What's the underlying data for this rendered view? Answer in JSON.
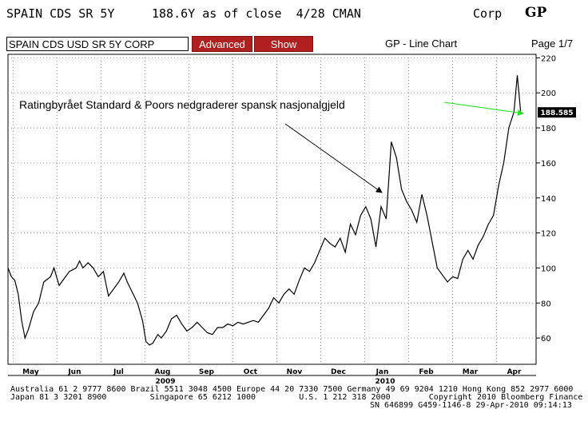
{
  "header": {
    "ticker": "SPAIN CDS SR 5Y",
    "price_info": "188.6Y as of close  4/28 CMAN",
    "sector": "Corp",
    "function": "GP"
  },
  "toolbar": {
    "security_value": "SPAIN CDS USD SR 5Y CORP",
    "advanced_label": "Advanced",
    "show_label": "Show",
    "chart_title": "GP - Line Chart",
    "page": "Page 1/7"
  },
  "chart_data": {
    "type": "line",
    "y_ticks": [
      "60",
      "80",
      "100",
      "120",
      "140",
      "160",
      "180",
      "200",
      "220"
    ],
    "ylim": [
      45,
      222
    ],
    "x_months": [
      "May",
      "Jun",
      "Jul",
      "Aug",
      "Sep",
      "Oct",
      "Nov",
      "Dec",
      "Jan",
      "Feb",
      "Mar",
      "Apr"
    ],
    "x_years": [
      "2009",
      "2010"
    ],
    "last_value_label": "188.585",
    "annotation": "Ratingbyrået Standard & Poors nedgraderer spansk nasjonalgjeld",
    "series": [
      {
        "values": [
          [
            0,
            100
          ],
          [
            0.2,
            95
          ],
          [
            0.4,
            93
          ],
          [
            0.6,
            85
          ],
          [
            0.8,
            70
          ],
          [
            1,
            60
          ],
          [
            1.2,
            65
          ],
          [
            1.5,
            75
          ],
          [
            1.8,
            80
          ],
          [
            2.1,
            92
          ],
          [
            2.5,
            95
          ],
          [
            2.7,
            100
          ],
          [
            3,
            90
          ],
          [
            3.3,
            94
          ],
          [
            3.6,
            98
          ],
          [
            4,
            100
          ],
          [
            4.2,
            104
          ],
          [
            4.4,
            100
          ],
          [
            4.7,
            103
          ],
          [
            5,
            100
          ],
          [
            5.3,
            95
          ],
          [
            5.6,
            98
          ],
          [
            5.9,
            84
          ],
          [
            6.2,
            88
          ],
          [
            6.5,
            92
          ],
          [
            6.8,
            97
          ],
          [
            7,
            92
          ],
          [
            7.3,
            86
          ],
          [
            7.6,
            80
          ],
          [
            7.9,
            70
          ],
          [
            8.1,
            58
          ],
          [
            8.3,
            56
          ],
          [
            8.5,
            57
          ],
          [
            8.8,
            62
          ],
          [
            9,
            60
          ],
          [
            9.3,
            64
          ],
          [
            9.6,
            71
          ],
          [
            9.9,
            73
          ],
          [
            10.2,
            68
          ],
          [
            10.5,
            64
          ],
          [
            10.8,
            66
          ],
          [
            11.1,
            69
          ],
          [
            11.4,
            66
          ],
          [
            11.7,
            63
          ],
          [
            12,
            62
          ],
          [
            12.3,
            66
          ],
          [
            12.6,
            66
          ],
          [
            12.9,
            68
          ],
          [
            13.2,
            67
          ],
          [
            13.5,
            69
          ],
          [
            13.8,
            68
          ],
          [
            14.1,
            69
          ],
          [
            14.4,
            70
          ],
          [
            14.7,
            69
          ],
          [
            15,
            73
          ],
          [
            15.3,
            77
          ],
          [
            15.6,
            83
          ],
          [
            15.9,
            80
          ],
          [
            16.2,
            85
          ],
          [
            16.5,
            88
          ],
          [
            16.8,
            85
          ],
          [
            17.1,
            93
          ],
          [
            17.4,
            100
          ],
          [
            17.7,
            98
          ],
          [
            18,
            103
          ],
          [
            18.3,
            110
          ],
          [
            18.6,
            117
          ],
          [
            18.9,
            114
          ],
          [
            19.2,
            112
          ],
          [
            19.5,
            117
          ],
          [
            19.8,
            109
          ],
          [
            20.1,
            125
          ],
          [
            20.4,
            119
          ],
          [
            20.7,
            130
          ],
          [
            21,
            135
          ],
          [
            21.3,
            128
          ],
          [
            21.6,
            112
          ],
          [
            21.9,
            135
          ],
          [
            22.2,
            128
          ],
          [
            22.5,
            172
          ],
          [
            22.8,
            163
          ],
          [
            23.1,
            145
          ],
          [
            23.4,
            138
          ],
          [
            23.7,
            133
          ],
          [
            24,
            126
          ],
          [
            24.3,
            142
          ],
          [
            24.6,
            130
          ],
          [
            24.9,
            115
          ],
          [
            25.2,
            100
          ],
          [
            25.5,
            96
          ],
          [
            25.8,
            92
          ],
          [
            26.1,
            95
          ],
          [
            26.4,
            94
          ],
          [
            26.7,
            105
          ],
          [
            27,
            110
          ],
          [
            27.3,
            105
          ],
          [
            27.6,
            113
          ],
          [
            27.9,
            118
          ],
          [
            28.2,
            125
          ],
          [
            28.5,
            130
          ],
          [
            28.8,
            147
          ],
          [
            29.1,
            160
          ],
          [
            29.4,
            180
          ],
          [
            29.7,
            189
          ],
          [
            29.9,
            210
          ],
          [
            30.1,
            188.6
          ]
        ]
      }
    ]
  },
  "footer": {
    "line1": "Australia 61 2 9777 8600 Brazil 5511 3048 4500 Europe 44 20 7330 7500 Germany 49 69 9204 1210 Hong Kong 852 2977 6000",
    "line2": "Japan 81 3 3201 8900         Singapore 65 6212 1000         U.S. 1 212 318 2000        Copyright 2010 Bloomberg Finance L.P.",
    "line3": "SN 646899 G459-1146-8 29-Apr-2010 09:14:13"
  }
}
